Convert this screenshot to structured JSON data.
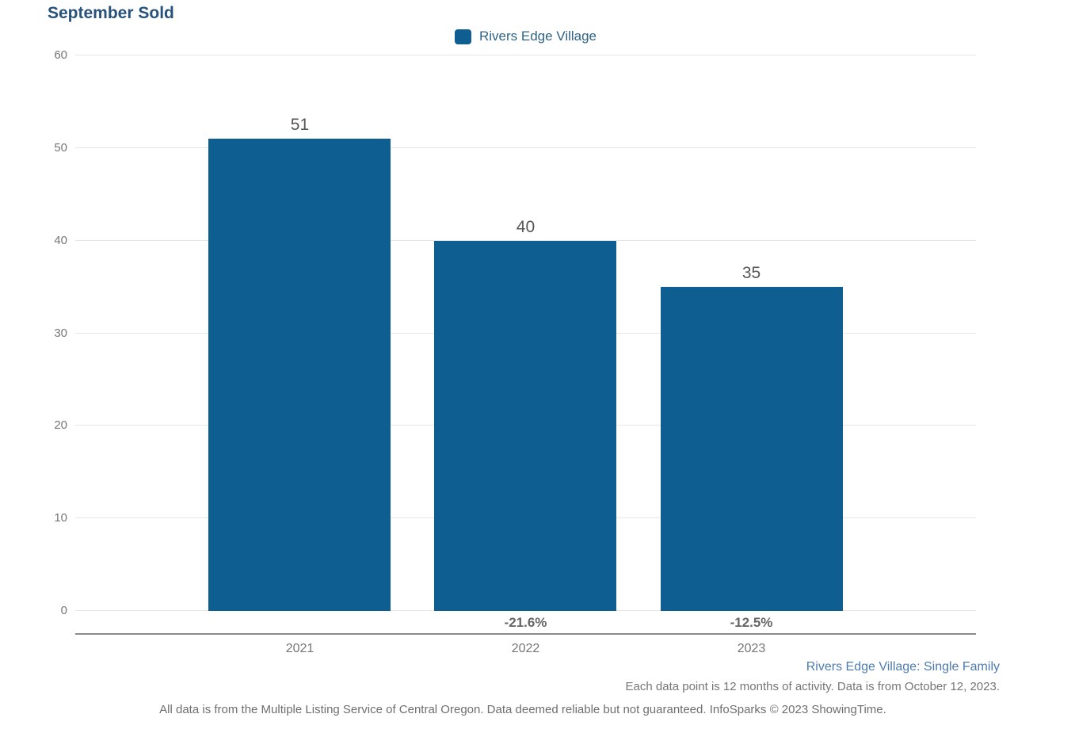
{
  "title": "September Sold",
  "legend": {
    "label": "Rivers Edge Village",
    "swatch_icon": "legend-square-swatch"
  },
  "chart_data": {
    "type": "bar",
    "title": "September Sold",
    "categories": [
      "2021",
      "2022",
      "2023"
    ],
    "series": [
      {
        "name": "Rivers Edge Village",
        "values": [
          51,
          40,
          35
        ]
      }
    ],
    "bar_value_labels": [
      "51",
      "40",
      "35"
    ],
    "pct_change_labels": [
      "",
      "-21.6%",
      "-12.5%"
    ],
    "ylim": [
      0,
      60
    ],
    "yticks": [
      0,
      10,
      20,
      30,
      40,
      50,
      60
    ],
    "xlabel": "",
    "ylabel": "",
    "grid": "horizontal",
    "legend_position": "top-center",
    "bar_color": "#0f5e91"
  },
  "footer": {
    "series_note": "Rivers Edge Village: Single Family",
    "activity_note": "Each data point is 12 months of activity. Data is from October 12, 2023.",
    "disclaimer": "All data is from the Multiple Listing Service of Central Oregon. Data deemed reliable but not guaranteed. InfoSparks © 2023 ShowingTime."
  },
  "colors": {
    "bar": "#0f5e91",
    "title_text": "#26527c",
    "legend_text": "#2f6386",
    "series_note_text": "#4d7bb0",
    "gridline": "#e6e6e6",
    "axis_line": "#8a8a8a",
    "tick_label": "#757575",
    "value_label": "#555555",
    "pct_label": "#666666"
  }
}
